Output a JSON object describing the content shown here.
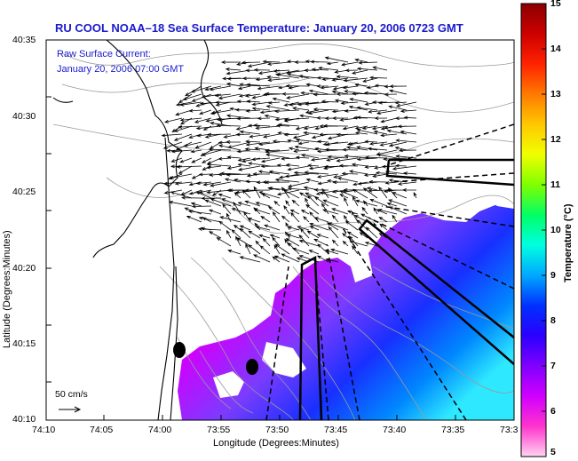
{
  "title": "RU COOL   NOAA–18  Sea Surface Temperature:  January 20, 2006 0723 GMT",
  "current_note": {
    "line1": "Raw Surface Current:",
    "line2": "January 20, 2006 07:00 GMT"
  },
  "axes": {
    "xlabel": "Longitude (Degrees:Minutes)",
    "ylabel": "Latitude (Degrees:Minutes)",
    "x_ticks": [
      "74:10",
      "74:05",
      "74:00",
      "73:55",
      "73:50",
      "73:45",
      "73:40",
      "73:35",
      "73:3"
    ],
    "y_ticks": [
      "40:35",
      "40:30",
      "40:25",
      "40:20",
      "40:15",
      "40:10"
    ]
  },
  "scale_bar": {
    "label": "50 cm/s"
  },
  "colorbar": {
    "label": "Temperature (°C)",
    "ticks": [
      "15",
      "14",
      "13",
      "12",
      "11",
      "10",
      "9",
      "8",
      "7",
      "6",
      "5"
    ],
    "stops": [
      "#8b0000",
      "#cc0000",
      "#ff2200",
      "#ff7a00",
      "#ffc800",
      "#f0ff00",
      "#80ff00",
      "#00ff66",
      "#00ffe0",
      "#00a8ff",
      "#0030ff",
      "#2a00ff",
      "#8000ff",
      "#d000ff",
      "#ff33cc",
      "#ffd4f0"
    ]
  },
  "colors": {
    "title": "#1a1acc",
    "sst_warm": "#ff00ff",
    "sst_mid": "#7a3cff",
    "sst_cool": "#1830ff",
    "sst_cold": "#2ee8ff",
    "contour": "#9a9a9a",
    "coast": "#000000"
  },
  "icons": [
    "vector-arrow-icon",
    "station-marker-icon"
  ]
}
